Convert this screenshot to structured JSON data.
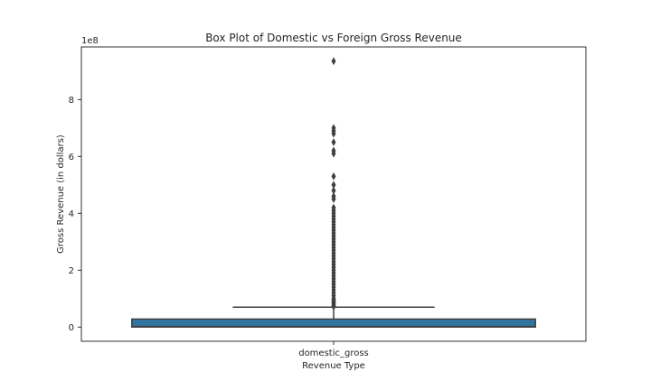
{
  "chart_data": {
    "type": "box",
    "title": "Box Plot of Domestic vs Foreign Gross Revenue",
    "xlabel": "Revenue Type",
    "ylabel": "Gross Revenue (in dollars)",
    "y_offset_label": "1e8",
    "y_scale_factor": 100000000,
    "categories": [
      "domestic_gross"
    ],
    "ylim": [
      -50000000,
      985000000
    ],
    "yticks": [
      0,
      200000000,
      400000000,
      600000000,
      800000000
    ],
    "ytick_labels": [
      "0",
      "2",
      "4",
      "6",
      "8"
    ],
    "box": {
      "min": 0,
      "q1": 0,
      "median": 1500000,
      "q3": 28000000,
      "whisker_low": 0,
      "whisker_high": 70000000,
      "color": "#3274a1",
      "edge_color": "#3f3f3f"
    },
    "outliers": [
      935000000,
      700000000,
      690000000,
      680000000,
      650000000,
      620000000,
      610000000,
      530000000,
      500000000,
      480000000,
      460000000,
      450000000,
      420000000,
      410000000,
      400000000,
      390000000,
      380000000,
      370000000,
      360000000,
      350000000,
      340000000,
      330000000,
      320000000,
      310000000,
      300000000,
      290000000,
      280000000,
      270000000,
      260000000,
      250000000,
      240000000,
      230000000,
      220000000,
      210000000,
      200000000,
      190000000,
      180000000,
      170000000,
      160000000,
      150000000,
      140000000,
      130000000,
      120000000,
      110000000,
      100000000,
      95000000,
      90000000,
      85000000,
      80000000,
      75000000,
      72000000
    ],
    "grid": false
  }
}
